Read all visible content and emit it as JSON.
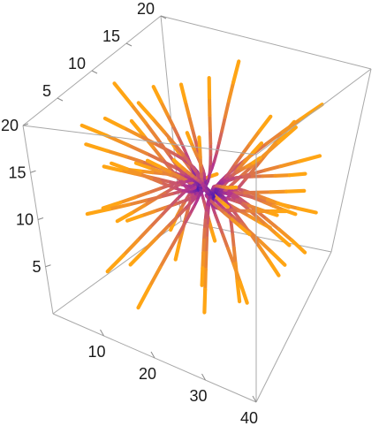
{
  "chart_data": {
    "type": "3d-stream-plot",
    "title": "",
    "xlabel": "",
    "ylabel": "",
    "zlabel": "",
    "axes": {
      "x": {
        "range": [
          0,
          40
        ],
        "ticks": [
          "10",
          "20",
          "30",
          "40"
        ]
      },
      "y": {
        "range": [
          0,
          20
        ],
        "ticks": [
          "5",
          "10",
          "15",
          "20"
        ]
      },
      "z": {
        "range": [
          0,
          20
        ],
        "ticks": [
          "5",
          "10",
          "15",
          "20"
        ]
      }
    },
    "colors": {
      "stream_start": "#3d16b8",
      "stream_mid": "#b3358e",
      "stream_end": "#ffa514",
      "box": "#a8a8a8"
    },
    "streamlines": [
      {
        "tip": [
          -0.97,
          0.06,
          0.48
        ],
        "bend": [
          0.1,
          0.25,
          0.35
        ]
      },
      {
        "tip": [
          -0.84,
          -0.22,
          0.14
        ],
        "bend": [
          0.15,
          -0.3,
          0.2
        ]
      },
      {
        "tip": [
          -0.92,
          0.22,
          -0.14
        ],
        "bend": [
          0.0,
          0.35,
          0.1
        ]
      },
      {
        "tip": [
          -0.78,
          -0.04,
          -0.52
        ],
        "bend": [
          0.25,
          0.15,
          -0.1
        ]
      },
      {
        "tip": [
          -0.66,
          0.38,
          0.72
        ],
        "bend": [
          -0.15,
          0.1,
          0.4
        ]
      },
      {
        "tip": [
          -0.9,
          -0.36,
          0.44
        ],
        "bend": [
          0.2,
          -0.15,
          0.3
        ]
      },
      {
        "tip": [
          -0.72,
          0.1,
          0.04
        ],
        "bend": [
          0.1,
          0.4,
          -0.2
        ]
      },
      {
        "tip": [
          -0.58,
          -0.48,
          -0.24
        ],
        "bend": [
          -0.1,
          0.2,
          0.3
        ]
      },
      {
        "tip": [
          -0.66,
          0.56,
          0.08
        ],
        "bend": [
          0.3,
          -0.2,
          0.2
        ]
      },
      {
        "tip": [
          -0.48,
          -0.14,
          0.86
        ],
        "bend": [
          0.2,
          0.3,
          -0.2
        ]
      },
      {
        "tip": [
          -0.54,
          0.32,
          -0.74
        ],
        "bend": [
          0.1,
          -0.25,
          0.3
        ]
      },
      {
        "tip": [
          -0.88,
          -0.5,
          -0.24
        ],
        "bend": [
          0.25,
          0.2,
          0.1
        ]
      },
      {
        "tip": [
          -0.44,
          -0.7,
          0.52
        ],
        "bend": [
          -0.2,
          0.1,
          -0.3
        ]
      },
      {
        "tip": [
          -0.6,
          0.72,
          0.58
        ],
        "bend": [
          0.15,
          0.1,
          0.25
        ]
      },
      {
        "tip": [
          -0.36,
          0.12,
          -0.9
        ],
        "bend": [
          -0.2,
          0.3,
          0.1
        ]
      },
      {
        "tip": [
          -0.94,
          0.4,
          0.28
        ],
        "bend": [
          0.1,
          -0.2,
          -0.25
        ]
      },
      {
        "tip": [
          -0.74,
          -0.62,
          0.82
        ],
        "bend": [
          0.3,
          0.2,
          0.0
        ]
      },
      {
        "tip": [
          -0.3,
          0.82,
          -0.36
        ],
        "bend": [
          0.0,
          -0.3,
          0.3
        ]
      },
      {
        "tip": [
          -0.82,
          0.04,
          0.9
        ],
        "bend": [
          0.2,
          -0.1,
          -0.35
        ]
      },
      {
        "tip": [
          -0.5,
          -0.84,
          -0.56
        ],
        "bend": [
          -0.1,
          0.25,
          0.2
        ]
      },
      {
        "tip": [
          -0.4,
          0.48,
          0.24
        ],
        "bend": [
          0.3,
          0.0,
          0.25
        ]
      },
      {
        "tip": [
          -0.62,
          -0.28,
          -0.82
        ],
        "bend": [
          0.15,
          0.35,
          0.0
        ]
      },
      {
        "tip": [
          -0.28,
          -0.38,
          0.42
        ],
        "bend": [
          0.2,
          0.3,
          -0.25
        ]
      },
      {
        "tip": [
          -0.98,
          -0.12,
          -0.4
        ],
        "bend": [
          0.0,
          0.2,
          0.3
        ]
      },
      {
        "tip": [
          0.97,
          -0.06,
          0.48
        ],
        "bend": [
          -0.1,
          0.25,
          0.35
        ]
      },
      {
        "tip": [
          0.84,
          0.22,
          0.14
        ],
        "bend": [
          -0.15,
          -0.3,
          0.2
        ]
      },
      {
        "tip": [
          0.92,
          -0.22,
          -0.14
        ],
        "bend": [
          0.0,
          0.35,
          0.1
        ]
      },
      {
        "tip": [
          0.78,
          0.04,
          -0.52
        ],
        "bend": [
          -0.25,
          0.15,
          -0.1
        ]
      },
      {
        "tip": [
          0.66,
          -0.38,
          0.72
        ],
        "bend": [
          0.15,
          0.1,
          0.4
        ]
      },
      {
        "tip": [
          0.9,
          0.36,
          0.44
        ],
        "bend": [
          -0.2,
          -0.15,
          0.3
        ]
      },
      {
        "tip": [
          0.72,
          -0.1,
          0.04
        ],
        "bend": [
          -0.1,
          0.4,
          -0.2
        ]
      },
      {
        "tip": [
          0.58,
          0.48,
          -0.24
        ],
        "bend": [
          0.1,
          0.2,
          0.3
        ]
      },
      {
        "tip": [
          0.66,
          -0.56,
          0.08
        ],
        "bend": [
          -0.3,
          -0.2,
          0.2
        ]
      },
      {
        "tip": [
          0.48,
          0.14,
          0.86
        ],
        "bend": [
          -0.2,
          0.3,
          -0.2
        ]
      },
      {
        "tip": [
          0.54,
          -0.32,
          -0.74
        ],
        "bend": [
          -0.1,
          -0.25,
          0.3
        ]
      },
      {
        "tip": [
          0.88,
          0.5,
          -0.24
        ],
        "bend": [
          -0.25,
          0.2,
          0.1
        ]
      },
      {
        "tip": [
          0.44,
          0.7,
          0.52
        ],
        "bend": [
          0.2,
          0.1,
          -0.3
        ]
      },
      {
        "tip": [
          0.6,
          -0.72,
          0.58
        ],
        "bend": [
          -0.15,
          0.1,
          0.25
        ]
      },
      {
        "tip": [
          0.36,
          -0.12,
          -0.9
        ],
        "bend": [
          0.2,
          0.3,
          0.1
        ]
      },
      {
        "tip": [
          0.94,
          -0.4,
          0.28
        ],
        "bend": [
          -0.1,
          -0.2,
          -0.25
        ]
      },
      {
        "tip": [
          0.74,
          0.62,
          0.82
        ],
        "bend": [
          -0.3,
          0.2,
          0.0
        ]
      },
      {
        "tip": [
          0.3,
          -0.82,
          -0.36
        ],
        "bend": [
          0.0,
          -0.3,
          0.3
        ]
      },
      {
        "tip": [
          0.82,
          -0.04,
          0.9
        ],
        "bend": [
          -0.2,
          -0.1,
          -0.35
        ]
      },
      {
        "tip": [
          0.5,
          0.84,
          -0.56
        ],
        "bend": [
          0.1,
          0.25,
          0.2
        ]
      },
      {
        "tip": [
          0.4,
          -0.48,
          0.24
        ],
        "bend": [
          -0.3,
          0.0,
          0.25
        ]
      },
      {
        "tip": [
          0.62,
          0.28,
          -0.82
        ],
        "bend": [
          -0.15,
          0.35,
          0.0
        ]
      },
      {
        "tip": [
          0.28,
          0.38,
          0.42
        ],
        "bend": [
          -0.2,
          0.3,
          -0.25
        ]
      },
      {
        "tip": [
          0.98,
          0.12,
          -0.4
        ],
        "bend": [
          0.0,
          0.2,
          0.3
        ]
      },
      {
        "tip": [
          -0.12,
          0.92,
          0.84
        ],
        "bend": [
          0.3,
          0.1,
          0.2
        ]
      },
      {
        "tip": [
          0.12,
          -0.92,
          0.84
        ],
        "bend": [
          -0.3,
          0.1,
          0.2
        ]
      },
      {
        "tip": [
          -0.18,
          -0.88,
          -0.8
        ],
        "bend": [
          0.3,
          -0.1,
          0.2
        ]
      },
      {
        "tip": [
          0.18,
          0.88,
          -0.8
        ],
        "bend": [
          -0.3,
          -0.1,
          0.2
        ]
      },
      {
        "tip": [
          -0.06,
          0.32,
          0.98
        ],
        "bend": [
          0.25,
          0.2,
          -0.1
        ]
      },
      {
        "tip": [
          0.06,
          -0.32,
          -0.98
        ],
        "bend": [
          -0.25,
          0.2,
          0.1
        ]
      },
      {
        "tip": [
          -0.2,
          0.62,
          -0.94
        ],
        "bend": [
          0.2,
          -0.2,
          0.15
        ]
      },
      {
        "tip": [
          0.2,
          -0.62,
          0.94
        ],
        "bend": [
          -0.2,
          -0.2,
          0.15
        ]
      }
    ]
  }
}
